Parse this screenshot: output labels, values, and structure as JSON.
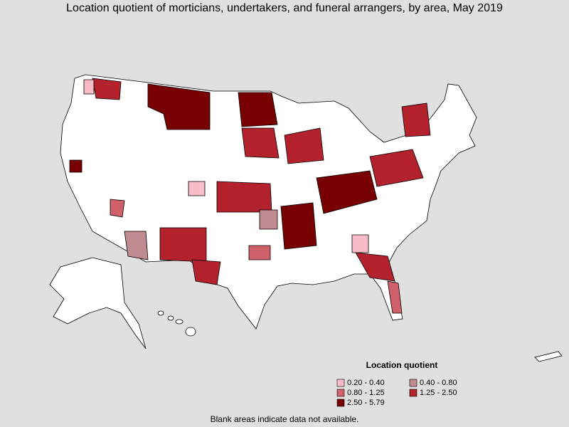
{
  "title": "Location quotient of morticians, undertakers, and funeral arrangers, by area, May 2019",
  "legend": {
    "title": "Location quotient",
    "items": [
      {
        "label": "0.20 - 0.40",
        "color": "#f7bcc6"
      },
      {
        "label": "0.40 - 0.80",
        "color": "#bf8a90"
      },
      {
        "label": "0.80 - 1.25",
        "color": "#d0606a"
      },
      {
        "label": "1.25 - 2.50",
        "color": "#b3222c"
      },
      {
        "label": "2.50 - 5.79",
        "color": "#780000"
      }
    ]
  },
  "footnote": "Blank areas indicate data not available."
}
